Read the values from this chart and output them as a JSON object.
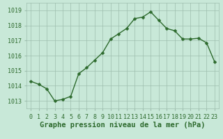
{
  "x": [
    0,
    1,
    2,
    3,
    4,
    5,
    6,
    7,
    8,
    9,
    10,
    11,
    12,
    13,
    14,
    15,
    16,
    17,
    18,
    19,
    20,
    21,
    22,
    23
  ],
  "y": [
    1014.3,
    1014.1,
    1013.8,
    1013.0,
    1013.1,
    1013.3,
    1014.8,
    1015.2,
    1015.7,
    1016.2,
    1017.1,
    1017.45,
    1017.8,
    1018.45,
    1018.55,
    1018.9,
    1018.35,
    1017.8,
    1017.65,
    1017.1,
    1017.1,
    1017.15,
    1016.85,
    1015.6
  ],
  "line_color": "#2d6a2d",
  "marker_color": "#2d6a2d",
  "bg_color": "#c8e8d8",
  "plot_bg_color": "#c8e8d8",
  "grid_color": "#9dbdad",
  "title": "Graphe pression niveau de la mer (hPa)",
  "ylim": [
    1012.5,
    1019.5
  ],
  "xlim": [
    -0.5,
    23.5
  ],
  "yticks": [
    1013,
    1014,
    1015,
    1016,
    1017,
    1018,
    1019
  ],
  "xtick_labels": [
    "0",
    "1",
    "2",
    "3",
    "4",
    "5",
    "6",
    "7",
    "8",
    "9",
    "10",
    "11",
    "12",
    "13",
    "14",
    "15",
    "16",
    "17",
    "18",
    "19",
    "20",
    "21",
    "22",
    "23"
  ],
  "title_fontsize": 7.5,
  "tick_fontsize": 6,
  "line_width": 1.0,
  "marker_size": 2.5
}
